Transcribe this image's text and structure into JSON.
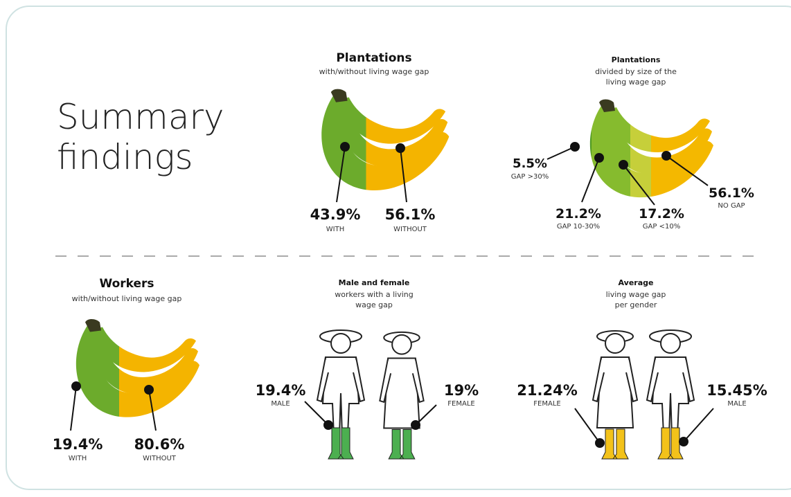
{
  "title": "Summary findings",
  "panels": [
    {
      "title": "Plantations",
      "subtitle": "with/without living wage gap",
      "items": [
        {
          "value": "43.9%",
          "label": "WITH"
        },
        {
          "value": "56.1%",
          "label": "WITHOUT"
        }
      ]
    },
    {
      "title": "Plantations",
      "subtitle": "divided by size of the living wage gap",
      "items": [
        {
          "value": "5.5%",
          "label": "GAP >30%"
        },
        {
          "value": "21.2%",
          "label": "GAP 10-30%"
        },
        {
          "value": "17.2%",
          "label": "GAP <10%"
        },
        {
          "value": "56.1%",
          "label": "NO GAP"
        }
      ]
    },
    {
      "title": "Workers",
      "subtitle": "with/without living wage gap",
      "items": [
        {
          "value": "19.4%",
          "label": "WITH"
        },
        {
          "value": "80.6%",
          "label": "WITHOUT"
        }
      ]
    },
    {
      "title": "Male and female",
      "subtitle": "workers with a living wage gap",
      "items": [
        {
          "value": "19.4%",
          "label": "MALE"
        },
        {
          "value": "19%",
          "label": "FEMALE"
        }
      ]
    },
    {
      "title": "Average",
      "subtitle": "living wage gap per gender",
      "items": [
        {
          "value": "21.24%",
          "label": "FEMALE"
        },
        {
          "value": "15.45%",
          "label": "MALE"
        }
      ]
    }
  ]
}
